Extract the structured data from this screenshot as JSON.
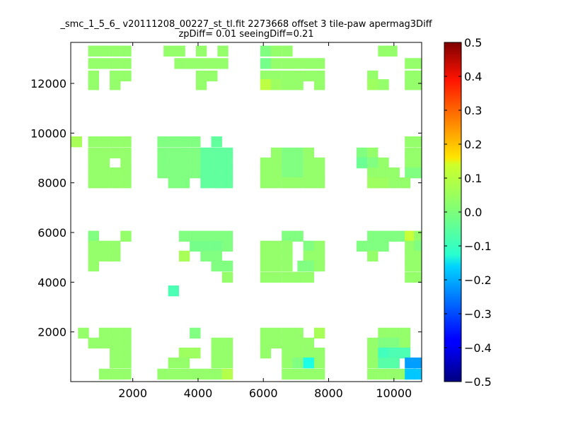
{
  "chart_data": {
    "type": "heatmap",
    "title_line1": "_smc_1_5_6_ v20111208_00227_st_tl.fit 2273668 offset 3 tile-paw apermag3Diff",
    "title_line2": "zpDiff= 0.01 seeingDiff=0.21",
    "xlabel": "",
    "ylabel": "",
    "xlim": [
      100,
      10850
    ],
    "ylim": [
      0,
      13650
    ],
    "xticks": [
      2000,
      4000,
      6000,
      8000,
      10000
    ],
    "yticks": [
      2000,
      4000,
      6000,
      8000,
      10000,
      12000
    ],
    "colorbar": {
      "colormap": "jet",
      "vmin": -0.5,
      "vmax": 0.5,
      "ticks": [
        "0.5",
        "0.4",
        "0.3",
        "0.2",
        "0.1",
        "0.0",
        "−0.1",
        "−0.2",
        "−0.3",
        "−0.4",
        "−0.5"
      ]
    },
    "grid": false,
    "cell_width": 333,
    "cell_height": 437,
    "cells": [
      [
        800,
        13300,
        0.02
      ],
      [
        1130,
        13300,
        0.02
      ],
      [
        1460,
        13300,
        0.02
      ],
      [
        1790,
        13300,
        0.02
      ],
      [
        3110,
        13300,
        0.02
      ],
      [
        3440,
        13300,
        0.02
      ],
      [
        4100,
        13300,
        0.02
      ],
      [
        4760,
        13300,
        0.02
      ],
      [
        6070,
        13300,
        0.0
      ],
      [
        6400,
        13300,
        0.02
      ],
      [
        6730,
        13300,
        0.02
      ],
      [
        9680,
        13300,
        0.02
      ],
      [
        9940,
        13300,
        0.02
      ],
      [
        800,
        12800,
        0.02
      ],
      [
        1130,
        12800,
        0.02
      ],
      [
        1460,
        12800,
        0.02
      ],
      [
        1790,
        12800,
        0.02
      ],
      [
        3440,
        12800,
        0.02
      ],
      [
        3770,
        12800,
        0.02
      ],
      [
        4100,
        12800,
        0.02
      ],
      [
        4430,
        12800,
        0.02
      ],
      [
        4760,
        12800,
        0.02
      ],
      [
        6070,
        12800,
        -0.01
      ],
      [
        6400,
        12800,
        0.02
      ],
      [
        6730,
        12800,
        0.02
      ],
      [
        7060,
        12800,
        0.02
      ],
      [
        7390,
        12800,
        0.02
      ],
      [
        7720,
        12800,
        0.02
      ],
      [
        10500,
        12800,
        0.02
      ],
      [
        10780,
        12800,
        0.02
      ],
      [
        800,
        12300,
        0.02
      ],
      [
        1460,
        12300,
        0.02
      ],
      [
        1790,
        12300,
        0.02
      ],
      [
        4100,
        12300,
        0.02
      ],
      [
        4430,
        12300,
        0.02
      ],
      [
        6070,
        12300,
        0.02
      ],
      [
        6400,
        12300,
        0.02
      ],
      [
        6730,
        12300,
        0.02
      ],
      [
        7060,
        12300,
        0.02
      ],
      [
        7390,
        12300,
        0.02
      ],
      [
        7720,
        12300,
        0.02
      ],
      [
        9350,
        12300,
        0.02
      ],
      [
        10500,
        12300,
        0.02
      ],
      [
        10780,
        12300,
        0.02
      ],
      [
        800,
        11950,
        0.02
      ],
      [
        1460,
        11950,
        0.02
      ],
      [
        4100,
        11950,
        0.02
      ],
      [
        6070,
        11950,
        0.06
      ],
      [
        6400,
        11950,
        0.03
      ],
      [
        6730,
        11950,
        0.02
      ],
      [
        7060,
        11950,
        0.02
      ],
      [
        7720,
        11950,
        0.02
      ],
      [
        9350,
        11950,
        0.03
      ],
      [
        9680,
        11950,
        0.02
      ],
      [
        10500,
        11950,
        0.02
      ],
      [
        10780,
        11950,
        0.02
      ],
      [
        280,
        9650,
        0.04
      ],
      [
        800,
        9650,
        0.02
      ],
      [
        1130,
        9650,
        0.02
      ],
      [
        1460,
        9650,
        0.02
      ],
      [
        1790,
        9650,
        0.02
      ],
      [
        2920,
        9650,
        0.0
      ],
      [
        3250,
        9650,
        0.0
      ],
      [
        3580,
        9650,
        0.0
      ],
      [
        3910,
        9650,
        0.0
      ],
      [
        4570,
        9650,
        -0.03
      ],
      [
        10500,
        9650,
        0.02
      ],
      [
        10780,
        9650,
        0.02
      ],
      [
        800,
        9200,
        0.02
      ],
      [
        1130,
        9200,
        0.02
      ],
      [
        1460,
        9200,
        0.02
      ],
      [
        1790,
        9200,
        0.02
      ],
      [
        2920,
        9200,
        0.0
      ],
      [
        3250,
        9200,
        0.0
      ],
      [
        3580,
        9200,
        0.0
      ],
      [
        3910,
        9200,
        0.0
      ],
      [
        4240,
        9200,
        -0.03
      ],
      [
        4570,
        9200,
        -0.03
      ],
      [
        4900,
        9200,
        -0.03
      ],
      [
        6400,
        9200,
        0.02
      ],
      [
        6730,
        9200,
        0.0
      ],
      [
        7060,
        9200,
        0.0
      ],
      [
        7390,
        9200,
        0.02
      ],
      [
        9020,
        9200,
        0.0
      ],
      [
        9350,
        9200,
        0.02
      ],
      [
        10500,
        9200,
        0.02
      ],
      [
        10780,
        9200,
        0.02
      ],
      [
        800,
        8800,
        0.02
      ],
      [
        1130,
        8800,
        0.02
      ],
      [
        1790,
        8800,
        0.02
      ],
      [
        2920,
        8800,
        0.0
      ],
      [
        3250,
        8800,
        0.0
      ],
      [
        3580,
        8800,
        0.0
      ],
      [
        3910,
        8800,
        0.0
      ],
      [
        4240,
        8800,
        -0.03
      ],
      [
        4570,
        8800,
        -0.03
      ],
      [
        4900,
        8800,
        -0.03
      ],
      [
        6070,
        8800,
        0.02
      ],
      [
        6400,
        8800,
        0.02
      ],
      [
        6730,
        8800,
        0.0
      ],
      [
        7060,
        8800,
        0.0
      ],
      [
        7390,
        8800,
        0.02
      ],
      [
        7720,
        8800,
        0.02
      ],
      [
        9020,
        8800,
        -0.02
      ],
      [
        9350,
        8800,
        0.0
      ],
      [
        9680,
        8800,
        0.02
      ],
      [
        10500,
        8800,
        0.02
      ],
      [
        10780,
        8800,
        0.02
      ],
      [
        800,
        8400,
        0.02
      ],
      [
        1130,
        8400,
        0.02
      ],
      [
        1460,
        8400,
        0.02
      ],
      [
        1790,
        8400,
        0.02
      ],
      [
        2920,
        8400,
        0.0
      ],
      [
        3250,
        8400,
        0.0
      ],
      [
        3580,
        8400,
        0.0
      ],
      [
        3910,
        8400,
        0.0
      ],
      [
        4240,
        8400,
        -0.03
      ],
      [
        4570,
        8400,
        -0.03
      ],
      [
        4900,
        8400,
        -0.03
      ],
      [
        6070,
        8400,
        0.02
      ],
      [
        6400,
        8400,
        0.02
      ],
      [
        6730,
        8400,
        0.0
      ],
      [
        7060,
        8400,
        0.0
      ],
      [
        7390,
        8400,
        0.02
      ],
      [
        7720,
        8400,
        0.02
      ],
      [
        9350,
        8400,
        0.02
      ],
      [
        9680,
        8400,
        0.02
      ],
      [
        10010,
        8400,
        0.02
      ],
      [
        10500,
        8400,
        0.0
      ],
      [
        10780,
        8400,
        0.0
      ],
      [
        800,
        8000,
        0.02
      ],
      [
        1130,
        8000,
        0.02
      ],
      [
        1460,
        8000,
        0.02
      ],
      [
        1790,
        8000,
        0.02
      ],
      [
        3250,
        8000,
        0.0
      ],
      [
        3580,
        8000,
        0.0
      ],
      [
        4240,
        8000,
        -0.03
      ],
      [
        4570,
        8000,
        -0.03
      ],
      [
        4900,
        8000,
        -0.03
      ],
      [
        6070,
        8000,
        0.02
      ],
      [
        6400,
        8000,
        0.02
      ],
      [
        6730,
        8000,
        0.02
      ],
      [
        7060,
        8000,
        0.02
      ],
      [
        7390,
        8000,
        0.02
      ],
      [
        7720,
        8000,
        0.02
      ],
      [
        9350,
        8000,
        0.03
      ],
      [
        9680,
        8000,
        0.03
      ],
      [
        10010,
        8000,
        0.02
      ],
      [
        10340,
        8000,
        0.02
      ],
      [
        800,
        5850,
        0.0
      ],
      [
        1790,
        5850,
        0.02
      ],
      [
        3580,
        5850,
        0.0
      ],
      [
        3910,
        5850,
        0.0
      ],
      [
        4240,
        5850,
        0.0
      ],
      [
        4570,
        5850,
        0.0
      ],
      [
        4900,
        5850,
        0.0
      ],
      [
        6730,
        5850,
        0.0
      ],
      [
        7060,
        5850,
        0.0
      ],
      [
        9350,
        5850,
        0.0
      ],
      [
        9680,
        5850,
        0.0
      ],
      [
        10010,
        5850,
        0.0
      ],
      [
        10340,
        5850,
        0.0
      ],
      [
        10500,
        5850,
        0.07
      ],
      [
        10780,
        5850,
        0.02
      ],
      [
        800,
        5450,
        0.02
      ],
      [
        1130,
        5450,
        0.02
      ],
      [
        1460,
        5450,
        0.02
      ],
      [
        3910,
        5450,
        -0.01
      ],
      [
        4240,
        5450,
        -0.01
      ],
      [
        4570,
        5450,
        -0.01
      ],
      [
        4900,
        5450,
        0.0
      ],
      [
        6070,
        5450,
        0.02
      ],
      [
        6400,
        5450,
        0.02
      ],
      [
        6730,
        5450,
        0.02
      ],
      [
        7390,
        5450,
        0.0
      ],
      [
        7720,
        5450,
        0.02
      ],
      [
        9020,
        5450,
        0.0
      ],
      [
        9350,
        5450,
        0.0
      ],
      [
        9680,
        5450,
        0.0
      ],
      [
        10500,
        5450,
        0.02
      ],
      [
        10780,
        5450,
        0.0
      ],
      [
        800,
        5050,
        0.02
      ],
      [
        1130,
        5050,
        0.02
      ],
      [
        1460,
        5050,
        0.02
      ],
      [
        3580,
        5050,
        0.04
      ],
      [
        4240,
        5050,
        0.0
      ],
      [
        4570,
        5050,
        0.0
      ],
      [
        6070,
        5050,
        0.02
      ],
      [
        6400,
        5050,
        0.02
      ],
      [
        6730,
        5050,
        0.02
      ],
      [
        7390,
        5050,
        0.02
      ],
      [
        7720,
        5050,
        0.02
      ],
      [
        9350,
        5050,
        0.02
      ],
      [
        10500,
        5050,
        0.02
      ],
      [
        10780,
        5050,
        0.02
      ],
      [
        800,
        4650,
        0.02
      ],
      [
        4570,
        4650,
        0.0
      ],
      [
        4900,
        4650,
        0.0
      ],
      [
        6070,
        4650,
        0.02
      ],
      [
        6400,
        4650,
        0.02
      ],
      [
        6730,
        4650,
        0.02
      ],
      [
        7210,
        4650,
        0.0
      ],
      [
        7540,
        4650,
        0.0
      ],
      [
        7720,
        4650,
        0.02
      ],
      [
        10500,
        4650,
        0.02
      ],
      [
        10780,
        4650,
        0.02
      ],
      [
        4900,
        4200,
        0.02
      ],
      [
        6070,
        4200,
        0.02
      ],
      [
        6400,
        4200,
        0.02
      ],
      [
        6730,
        4200,
        0.02
      ],
      [
        7060,
        4200,
        0.02
      ],
      [
        7390,
        4200,
        0.02
      ],
      [
        10500,
        4200,
        0.02
      ],
      [
        10780,
        4200,
        0.02
      ],
      [
        3250,
        3650,
        -0.05
      ],
      [
        490,
        1950,
        0.02
      ],
      [
        1130,
        1950,
        0.02
      ],
      [
        1460,
        1950,
        0.02
      ],
      [
        1790,
        1950,
        0.02
      ],
      [
        3910,
        1950,
        0.0
      ],
      [
        6070,
        1950,
        0.02
      ],
      [
        6400,
        1950,
        0.02
      ],
      [
        6730,
        1950,
        0.02
      ],
      [
        7060,
        1950,
        0.02
      ],
      [
        7720,
        1950,
        0.04
      ],
      [
        9680,
        1950,
        0.02
      ],
      [
        10010,
        1950,
        0.02
      ],
      [
        10340,
        1950,
        0.02
      ],
      [
        800,
        1550,
        0.02
      ],
      [
        1130,
        1550,
        0.02
      ],
      [
        1460,
        1550,
        0.02
      ],
      [
        1790,
        1550,
        0.02
      ],
      [
        4570,
        1550,
        0.02
      ],
      [
        4900,
        1550,
        0.02
      ],
      [
        6070,
        1550,
        0.02
      ],
      [
        6400,
        1550,
        0.02
      ],
      [
        6730,
        1550,
        0.02
      ],
      [
        7060,
        1550,
        0.02
      ],
      [
        7390,
        1550,
        0.02
      ],
      [
        9350,
        1550,
        0.02
      ],
      [
        9680,
        1550,
        0.0
      ],
      [
        10010,
        1550,
        0.0
      ],
      [
        10340,
        1550,
        0.02
      ],
      [
        1460,
        1150,
        0.02
      ],
      [
        1790,
        1150,
        0.02
      ],
      [
        3580,
        1150,
        0.03
      ],
      [
        3910,
        1150,
        0.03
      ],
      [
        4570,
        1150,
        0.02
      ],
      [
        4900,
        1150,
        0.02
      ],
      [
        6070,
        1150,
        0.02
      ],
      [
        6730,
        1150,
        0.02
      ],
      [
        7060,
        1150,
        0.02
      ],
      [
        7390,
        1150,
        0.02
      ],
      [
        7720,
        1150,
        0.02
      ],
      [
        9350,
        1150,
        0.02
      ],
      [
        9680,
        1150,
        -0.06
      ],
      [
        10010,
        1150,
        -0.05
      ],
      [
        10340,
        1150,
        -0.05
      ],
      [
        1460,
        750,
        0.02
      ],
      [
        1790,
        750,
        0.02
      ],
      [
        3250,
        750,
        0.02
      ],
      [
        3580,
        750,
        0.02
      ],
      [
        4570,
        750,
        0.02
      ],
      [
        4900,
        750,
        0.02
      ],
      [
        6730,
        750,
        0.02
      ],
      [
        7060,
        750,
        0.0
      ],
      [
        7390,
        750,
        -0.1
      ],
      [
        7720,
        750,
        0.02
      ],
      [
        9350,
        750,
        0.02
      ],
      [
        9680,
        750,
        -0.04
      ],
      [
        10010,
        750,
        -0.04
      ],
      [
        10500,
        750,
        -0.22
      ],
      [
        10780,
        750,
        -0.22
      ],
      [
        1130,
        300,
        0.02
      ],
      [
        1460,
        300,
        0.02
      ],
      [
        1790,
        300,
        0.02
      ],
      [
        2920,
        300,
        0.02
      ],
      [
        3250,
        300,
        0.02
      ],
      [
        3580,
        300,
        0.02
      ],
      [
        3910,
        300,
        0.02
      ],
      [
        4240,
        300,
        0.02
      ],
      [
        4570,
        300,
        0.02
      ],
      [
        4900,
        300,
        0.05
      ],
      [
        6730,
        300,
        0.02
      ],
      [
        7060,
        300,
        0.02
      ],
      [
        7390,
        300,
        0.02
      ],
      [
        7720,
        300,
        0.02
      ],
      [
        9350,
        300,
        0.02
      ],
      [
        9680,
        300,
        0.02
      ],
      [
        10010,
        300,
        0.02
      ],
      [
        10340,
        300,
        0.02
      ],
      [
        10500,
        300,
        -0.18
      ],
      [
        10780,
        300,
        -0.18
      ]
    ]
  }
}
